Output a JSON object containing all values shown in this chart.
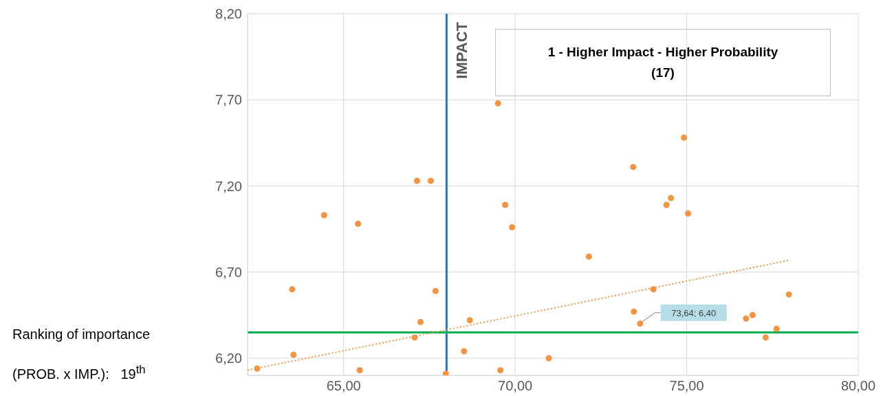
{
  "chart_data": {
    "type": "scatter",
    "xlim": [
      62.2,
      80
    ],
    "ylim": [
      6.1,
      8.2
    ],
    "xticks": [
      {
        "value": 65,
        "label": "65,00"
      },
      {
        "value": 70,
        "label": "70,00"
      },
      {
        "value": 75,
        "label": "75,00"
      },
      {
        "value": 80,
        "label": "80,00"
      }
    ],
    "yticks": [
      {
        "value": 6.2,
        "label": "6,20"
      },
      {
        "value": 6.7,
        "label": "6,70"
      },
      {
        "value": 7.2,
        "label": "7,20"
      },
      {
        "value": 7.7,
        "label": "7,70"
      },
      {
        "value": 8.2,
        "label": "8,20"
      }
    ],
    "grid": true,
    "series": [
      {
        "color": "#f39442",
        "marker": "circle",
        "x": [
          64.43,
          65.42,
          63.5,
          67.68,
          67.24,
          67.07,
          68.68,
          68.51,
          63.54,
          62.48,
          65.47,
          67.98,
          69.57,
          69.71,
          69.91,
          69.5,
          67.14,
          67.54,
          74.92,
          73.44,
          74.54,
          74.41,
          75.04,
          72.15,
          74.03,
          73.46,
          73.64,
          76.73,
          76.92,
          77.98,
          77.62,
          77.3,
          70.98
        ],
        "values": [
          7.03,
          6.98,
          6.6,
          6.59,
          6.41,
          6.32,
          6.42,
          6.24,
          6.22,
          6.14,
          6.13,
          6.11,
          6.13,
          7.09,
          6.96,
          7.68,
          7.23,
          7.23,
          7.48,
          7.31,
          7.13,
          7.09,
          7.04,
          6.79,
          6.6,
          6.47,
          6.4,
          6.43,
          6.45,
          6.57,
          6.37,
          6.32,
          6.2
        ]
      },
      {
        "type": "line",
        "color": "#f39442",
        "line_style": "dotted",
        "marker": "none",
        "x": [
          62.2,
          78.02
        ],
        "values": [
          6.13,
          6.77
        ]
      }
    ],
    "ref_lines": [
      {
        "axis": "x",
        "value": 68.0,
        "label": "IMPACT",
        "color": "#1f78c8"
      },
      {
        "axis": "y",
        "value": 6.35,
        "color": "#00b050"
      }
    ],
    "annotations": [
      {
        "text": "73,64; 6,40",
        "x": 73.64,
        "y": 6.4
      },
      "1 - Higher Impact - Higher Probability\n(17)",
      "Ranking of importance\n(PROB. x IMP.):   19$^{th}$"
    ]
  }
}
